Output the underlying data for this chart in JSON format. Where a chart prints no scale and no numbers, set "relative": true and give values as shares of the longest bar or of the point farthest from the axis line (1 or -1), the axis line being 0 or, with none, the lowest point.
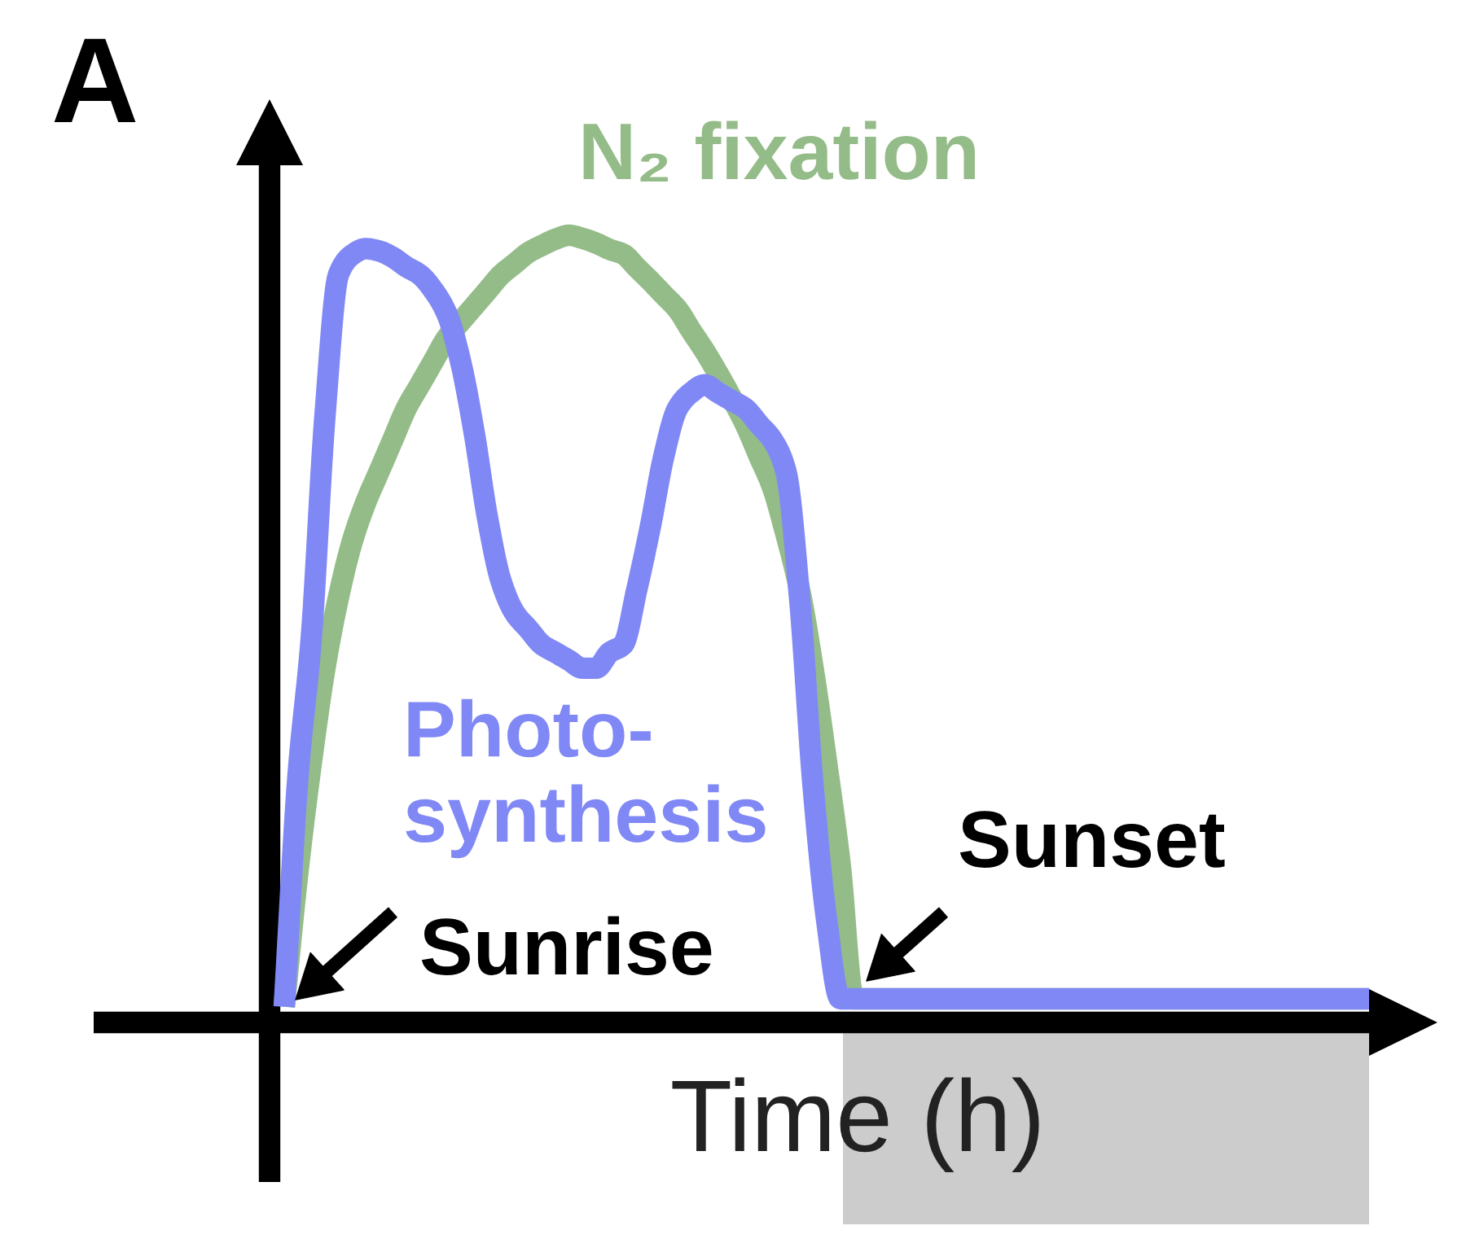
{
  "chart_data": {
    "type": "line",
    "relative": true,
    "xlabel": "Time (h)",
    "categories": [
      null,
      null,
      null,
      null,
      null,
      null,
      null,
      null,
      null,
      null,
      null,
      null,
      null,
      null,
      null,
      null,
      null,
      null,
      null,
      null,
      null,
      null,
      null,
      null,
      null,
      null,
      null,
      null,
      null,
      null,
      null,
      null,
      null,
      null,
      null,
      null,
      null,
      null,
      null,
      null,
      null,
      null,
      null,
      null,
      null,
      null,
      null,
      null,
      null,
      null,
      null,
      null,
      null,
      null,
      null,
      null,
      null,
      null,
      null,
      null,
      null,
      null,
      null,
      null,
      null,
      null,
      null,
      null,
      null,
      null,
      null,
      null,
      null,
      null,
      null,
      null,
      null,
      null,
      null,
      null,
      null
    ],
    "series": [
      {
        "name": "N₂ fixation",
        "color": "#94bc88",
        "values": [
          0.02,
          0.19,
          0.33,
          0.45,
          0.54,
          0.61,
          0.66,
          0.7,
          0.74,
          0.78,
          0.81,
          0.84,
          0.87,
          0.89,
          0.91,
          0.93,
          0.95,
          0.964,
          0.978,
          0.987,
          0.995,
          1.0,
          0.996,
          0.99,
          0.982,
          0.976,
          0.959,
          0.942,
          0.924,
          0.906,
          0.879,
          0.853,
          0.824,
          0.793,
          0.76,
          0.72,
          0.68,
          0.62,
          0.55,
          0.45,
          0.33,
          0.2,
          0.03,
          0.03,
          0.03,
          0.03,
          0.03,
          0.03,
          0.03,
          0.03,
          0.03,
          0.03,
          0.03,
          0.03,
          0.03,
          0.03,
          0.03,
          0.03,
          0.03,
          0.03,
          0.03,
          0.03,
          0.03,
          0.03,
          0.03,
          0.03,
          0.03,
          0.03,
          0.03,
          0.03,
          0.03,
          0.03,
          0.03,
          0.03,
          0.03,
          0.03,
          0.03,
          0.03,
          0.03,
          0.03,
          0.03
        ]
      },
      {
        "name": "Photo-\nsynthesis",
        "color": "#8088f5",
        "values": [
          0.02,
          0.31,
          0.49,
          0.77,
          0.95,
          0.975,
          0.983,
          0.98,
          0.972,
          0.96,
          0.95,
          0.93,
          0.9,
          0.84,
          0.75,
          0.64,
          0.56,
          0.52,
          0.5,
          0.48,
          0.47,
          0.46,
          0.45,
          0.45,
          0.47,
          0.48,
          0.55,
          0.63,
          0.72,
          0.78,
          0.8,
          0.81,
          0.8,
          0.79,
          0.78,
          0.76,
          0.74,
          0.7,
          0.54,
          0.3,
          0.13,
          0.03,
          0.03,
          0.03,
          0.03,
          0.03,
          0.03,
          0.03,
          0.03,
          0.03,
          0.03,
          0.03,
          0.03,
          0.03,
          0.03,
          0.03,
          0.03,
          0.03,
          0.03,
          0.03,
          0.03,
          0.03,
          0.03,
          0.03,
          0.03,
          0.03,
          0.03,
          0.03,
          0.03,
          0.03,
          0.03,
          0.03,
          0.03,
          0.03,
          0.03,
          0.03,
          0.03,
          0.03,
          0.03,
          0.03,
          0.03
        ]
      }
    ],
    "annotations": [
      "A",
      "Sunrise",
      "Sunset"
    ]
  }
}
